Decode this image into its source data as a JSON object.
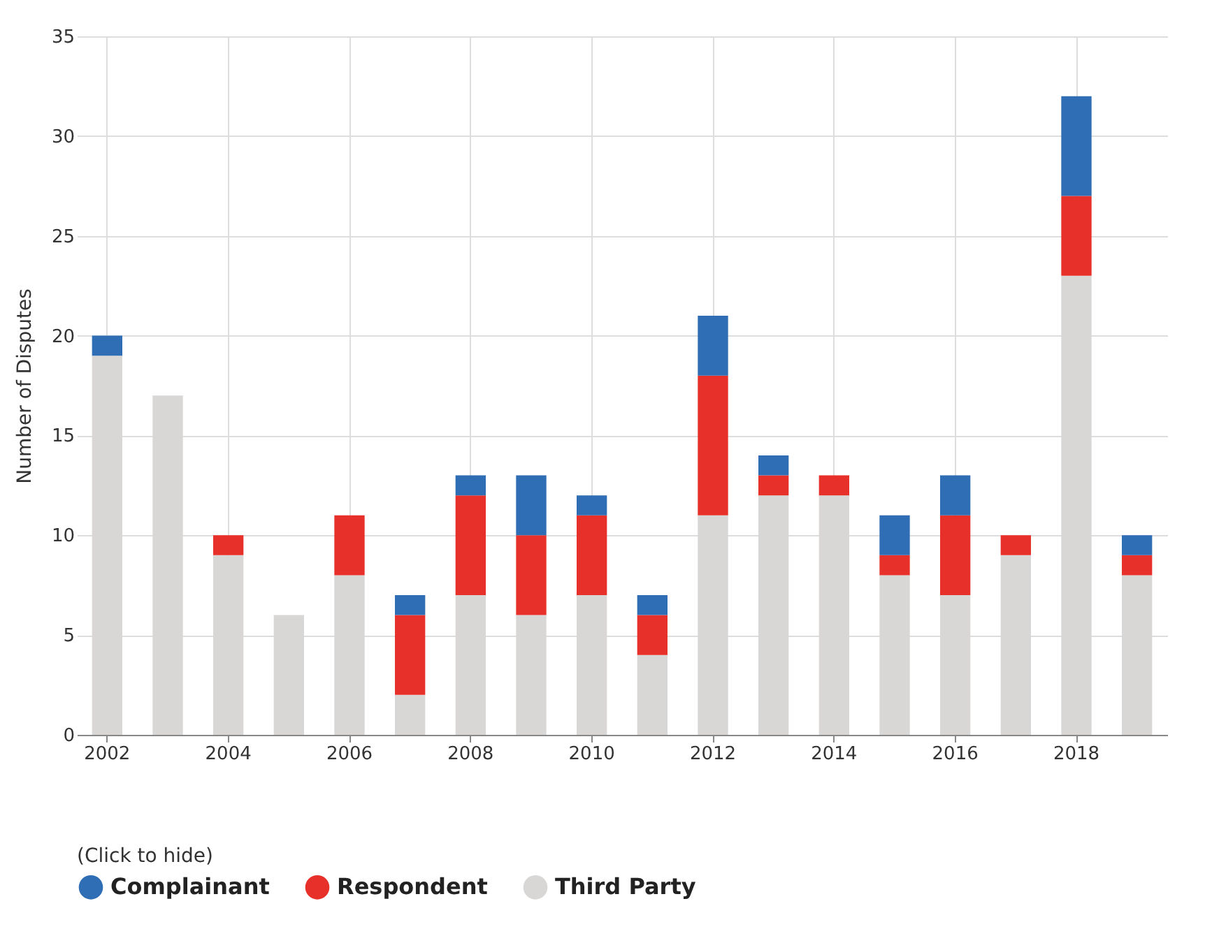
{
  "chart_data": {
    "type": "bar",
    "stacked": true,
    "ylabel": "Number of Disputes",
    "legend_title": "(Click to hide)",
    "legend": "bottom left",
    "grid": true,
    "categories": [
      "2002",
      null,
      "2004",
      null,
      "2006",
      null,
      "2008",
      null,
      "2010",
      null,
      "2012",
      null,
      "2014",
      null,
      "2016",
      null,
      "2018",
      null
    ],
    "ylim": [
      0,
      35
    ],
    "yticks": [
      0,
      5,
      10,
      15,
      20,
      25,
      30,
      35
    ],
    "series": [
      {
        "name": "Third Party",
        "color": "#d9d7d5",
        "values": [
          19,
          17,
          9,
          6,
          8,
          2,
          7,
          6,
          7,
          4,
          11,
          12,
          12,
          8,
          7,
          9,
          23,
          8
        ]
      },
      {
        "name": "Respondent",
        "color": "#e8302a",
        "values": [
          0,
          0,
          1,
          0,
          3,
          4,
          5,
          4,
          4,
          2,
          7,
          1,
          1,
          1,
          4,
          1,
          4,
          1
        ]
      },
      {
        "name": "Complainant",
        "color": "#2f6db5",
        "values": [
          1,
          0,
          0,
          0,
          0,
          1,
          1,
          3,
          1,
          1,
          3,
          1,
          0,
          2,
          2,
          0,
          5,
          1
        ]
      }
    ]
  }
}
